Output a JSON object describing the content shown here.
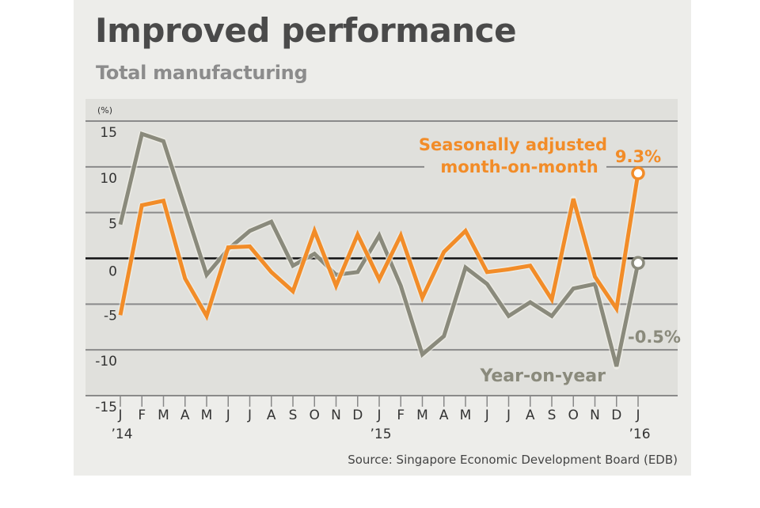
{
  "header": {
    "title": "Improved performance",
    "subtitle": "Total manufacturing"
  },
  "source": "Source: Singapore Economic Development Board (EDB)",
  "colors": {
    "mom": "#f28c28",
    "yoy": "#8a8a7c",
    "zero_line": "#111111",
    "grid": "#8a8a8a",
    "plot_bg": "#e0e0dc"
  },
  "chart_data": {
    "type": "line",
    "title": "Improved performance",
    "subtitle": "Total manufacturing",
    "ylabel": "(%)",
    "xlabel": "",
    "ylim": [
      -15,
      15
    ],
    "yticks": [
      15,
      10,
      5,
      0,
      -5,
      -10,
      -15
    ],
    "grid": true,
    "x": [
      "J",
      "F",
      "M",
      "A",
      "M",
      "J",
      "J",
      "A",
      "S",
      "O",
      "N",
      "D",
      "J",
      "F",
      "M",
      "A",
      "M",
      "J",
      "J",
      "A",
      "S",
      "O",
      "N",
      "D",
      "J"
    ],
    "year_labels": [
      {
        "index": 0,
        "label": "’14"
      },
      {
        "index": 12,
        "label": "’15"
      },
      {
        "index": 24,
        "label": "’16"
      }
    ],
    "series": [
      {
        "name": "Seasonally adjusted month-on-month",
        "label_lines": [
          "Seasonally adjusted",
          "month-on-month"
        ],
        "color": "#f28c28",
        "values": [
          -6.2,
          5.8,
          6.3,
          -2.2,
          -6.3,
          1.2,
          1.3,
          -1.5,
          -3.6,
          3.0,
          -3.0,
          2.6,
          -2.3,
          2.5,
          -4.3,
          0.7,
          3.0,
          -1.5,
          -1.2,
          -0.8,
          -4.5,
          6.5,
          -2.0,
          -5.5,
          9.3
        ],
        "end_label": "9.3%"
      },
      {
        "name": "Year-on-year",
        "label_lines": [
          "Year-on-year"
        ],
        "color": "#8a8a7c",
        "values": [
          3.7,
          13.6,
          12.8,
          5.5,
          -1.8,
          1.0,
          3.0,
          4.0,
          -0.8,
          0.5,
          -1.8,
          -1.5,
          2.5,
          -3.0,
          -10.5,
          -8.5,
          -1.0,
          -2.8,
          -6.3,
          -4.8,
          -6.3,
          -3.3,
          -2.8,
          -11.8,
          -0.5
        ],
        "end_label": "-0.5%"
      }
    ]
  }
}
